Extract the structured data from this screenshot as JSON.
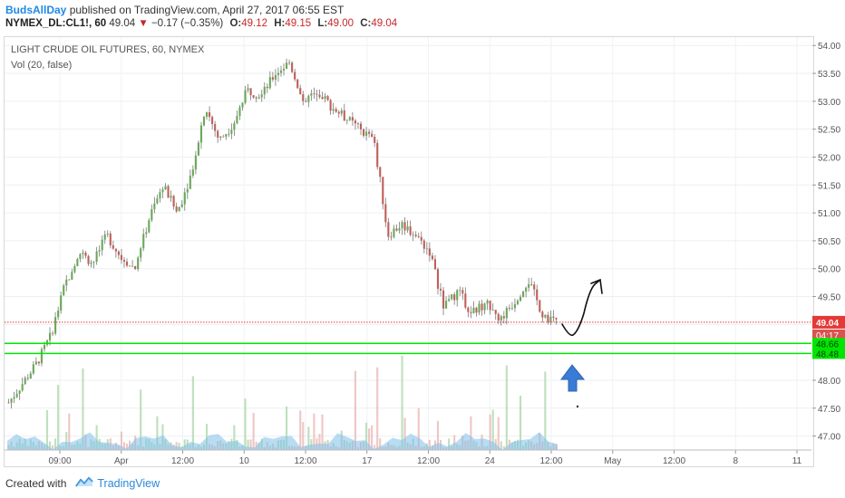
{
  "header": {
    "author": "BudsAllDay",
    "published_text": "published on TradingView.com, April 27, 2017 06:55 EST"
  },
  "quote": {
    "symbol": "NYMEX_DL:CL1!, 60",
    "last": "49.04",
    "change_arrow": "▼",
    "change": "−0.17 (−0.35%)",
    "open_label": "O:",
    "open": "49.12",
    "high_label": "H:",
    "high": "49.15",
    "low_label": "L:",
    "low": "49.00",
    "close_label": "C:",
    "close": "49.04"
  },
  "footer": {
    "created_with": "Created with",
    "brand": "TradingView"
  },
  "chart_data": {
    "type": "candlestick",
    "title": "LIGHT CRUDE OIL FUTURES, 60, NYMEX",
    "indicator": "Vol (20, false)",
    "ylim": [
      46.75,
      54.15
    ],
    "y_ticks": [
      "54.00",
      "53.50",
      "53.00",
      "52.50",
      "52.00",
      "51.50",
      "51.00",
      "50.50",
      "50.00",
      "49.50",
      "49.00",
      "48.00",
      "47.50",
      "47.00"
    ],
    "x_ticks": [
      "09:00",
      "Apr",
      "12:00",
      "10",
      "12:00",
      "17",
      "12:00",
      "24",
      "12:00",
      "May",
      "12:00",
      "8",
      "11"
    ],
    "current_price": {
      "label": "49.04",
      "value": 49.04,
      "color": "#e53935"
    },
    "countdown": {
      "label": "04:17"
    },
    "horizontal_lines": [
      {
        "label": "48.66",
        "value": 48.66,
        "color": "#00e600"
      },
      {
        "label": "48.48",
        "value": 48.48,
        "color": "#00e600"
      }
    ],
    "price_path": [
      {
        "t": 0.0,
        "v": 47.6
      },
      {
        "t": 0.04,
        "v": 48.3
      },
      {
        "t": 0.06,
        "v": 48.8
      },
      {
        "t": 0.08,
        "v": 49.7
      },
      {
        "t": 0.1,
        "v": 50.3
      },
      {
        "t": 0.12,
        "v": 50.1
      },
      {
        "t": 0.14,
        "v": 50.6
      },
      {
        "t": 0.16,
        "v": 50.2
      },
      {
        "t": 0.18,
        "v": 50.0
      },
      {
        "t": 0.2,
        "v": 50.9
      },
      {
        "t": 0.22,
        "v": 51.5
      },
      {
        "t": 0.24,
        "v": 51.0
      },
      {
        "t": 0.26,
        "v": 51.7
      },
      {
        "t": 0.28,
        "v": 52.9
      },
      {
        "t": 0.3,
        "v": 52.3
      },
      {
        "t": 0.32,
        "v": 52.6
      },
      {
        "t": 0.34,
        "v": 53.2
      },
      {
        "t": 0.36,
        "v": 53.1
      },
      {
        "t": 0.38,
        "v": 53.5
      },
      {
        "t": 0.4,
        "v": 53.7
      },
      {
        "t": 0.42,
        "v": 53.0
      },
      {
        "t": 0.44,
        "v": 53.2
      },
      {
        "t": 0.46,
        "v": 52.9
      },
      {
        "t": 0.48,
        "v": 52.7
      },
      {
        "t": 0.5,
        "v": 52.5
      },
      {
        "t": 0.52,
        "v": 52.3
      },
      {
        "t": 0.53,
        "v": 51.5
      },
      {
        "t": 0.54,
        "v": 50.6
      },
      {
        "t": 0.56,
        "v": 50.8
      },
      {
        "t": 0.58,
        "v": 50.6
      },
      {
        "t": 0.6,
        "v": 50.3
      },
      {
        "t": 0.62,
        "v": 49.3
      },
      {
        "t": 0.64,
        "v": 49.6
      },
      {
        "t": 0.66,
        "v": 49.2
      },
      {
        "t": 0.68,
        "v": 49.4
      },
      {
        "t": 0.7,
        "v": 49.1
      },
      {
        "t": 0.72,
        "v": 49.4
      },
      {
        "t": 0.74,
        "v": 49.8
      },
      {
        "t": 0.76,
        "v": 49.2
      },
      {
        "t": 0.78,
        "v": 49.04
      }
    ],
    "annotations": [
      {
        "type": "drawn-curve",
        "description": "forecast-curve"
      },
      {
        "type": "arrow",
        "direction": "up",
        "color": "#3a7bd5"
      }
    ]
  }
}
